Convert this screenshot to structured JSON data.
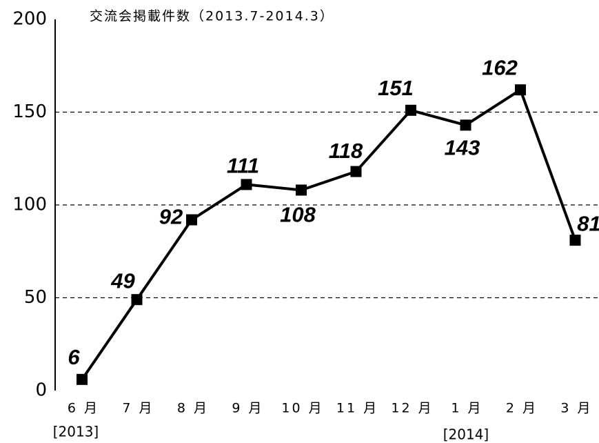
{
  "chart_data": {
    "type": "line",
    "title": "交流会掲載件数（2013.7-2014.3）",
    "categories": [
      "6 月",
      "7 月",
      "8 月",
      "9 月",
      "10 月",
      "11 月",
      "12 月",
      "1 月",
      "2 月",
      "3 月"
    ],
    "series": [
      {
        "color": "#000000",
        "values": [
          6,
          49,
          92,
          111,
          108,
          118,
          151,
          143,
          162,
          81
        ]
      }
    ],
    "ylim": [
      0,
      200
    ],
    "yticks": [
      0,
      50,
      100,
      150,
      200
    ],
    "grid": true,
    "annotations": [
      "[2013]",
      "[2014]"
    ]
  }
}
